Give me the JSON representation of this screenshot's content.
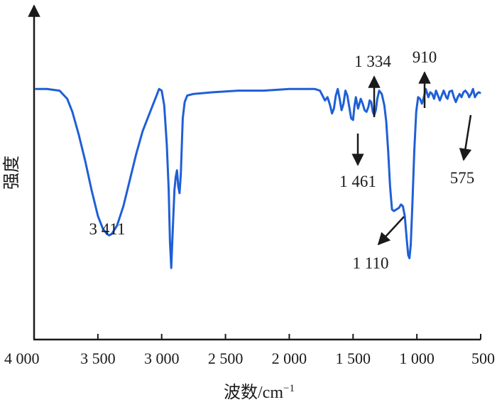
{
  "chart_data": {
    "type": "line",
    "title": "",
    "xlabel": "波数/cm",
    "xlabel_sup": "−1",
    "ylabel": "强度",
    "xlim": [
      4000,
      500
    ],
    "x_reversed": true,
    "ylim": [
      0,
      1
    ],
    "y_ticks_shown": false,
    "grid": false,
    "legend": "none",
    "line_color": "#1f5fd6",
    "arrow_color": "#1a1a1a",
    "x_ticks": [
      {
        "value": 4000,
        "label": "4 000"
      },
      {
        "value": 3500,
        "label": "3 500"
      },
      {
        "value": 3000,
        "label": "3 000"
      },
      {
        "value": 2500,
        "label": "2 500"
      },
      {
        "value": 2000,
        "label": "2 000"
      },
      {
        "value": 1500,
        "label": "1 500"
      },
      {
        "value": 1000,
        "label": "1 000"
      },
      {
        "value": 500,
        "label": "500"
      }
    ],
    "series": [
      {
        "points": [
          [
            3985,
            0.77
          ],
          [
            3900,
            0.77
          ],
          [
            3800,
            0.765
          ],
          [
            3740,
            0.74
          ],
          [
            3700,
            0.7
          ],
          [
            3650,
            0.63
          ],
          [
            3600,
            0.55
          ],
          [
            3550,
            0.46
          ],
          [
            3500,
            0.38
          ],
          [
            3460,
            0.34
          ],
          [
            3430,
            0.325
          ],
          [
            3411,
            0.32
          ],
          [
            3390,
            0.325
          ],
          [
            3350,
            0.35
          ],
          [
            3300,
            0.41
          ],
          [
            3250,
            0.49
          ],
          [
            3200,
            0.57
          ],
          [
            3150,
            0.64
          ],
          [
            3100,
            0.69
          ],
          [
            3070,
            0.72
          ],
          [
            3040,
            0.75
          ],
          [
            3020,
            0.77
          ],
          [
            3000,
            0.765
          ],
          [
            2980,
            0.72
          ],
          [
            2960,
            0.6
          ],
          [
            2945,
            0.46
          ],
          [
            2935,
            0.3
          ],
          [
            2925,
            0.22
          ],
          [
            2915,
            0.32
          ],
          [
            2900,
            0.46
          ],
          [
            2890,
            0.5
          ],
          [
            2880,
            0.52
          ],
          [
            2870,
            0.47
          ],
          [
            2860,
            0.45
          ],
          [
            2850,
            0.51
          ],
          [
            2835,
            0.68
          ],
          [
            2820,
            0.73
          ],
          [
            2800,
            0.75
          ],
          [
            2750,
            0.755
          ],
          [
            2600,
            0.76
          ],
          [
            2400,
            0.765
          ],
          [
            2200,
            0.765
          ],
          [
            2000,
            0.77
          ],
          [
            1800,
            0.77
          ],
          [
            1760,
            0.765
          ],
          [
            1740,
            0.75
          ],
          [
            1720,
            0.735
          ],
          [
            1700,
            0.745
          ],
          [
            1680,
            0.72
          ],
          [
            1665,
            0.695
          ],
          [
            1650,
            0.71
          ],
          [
            1635,
            0.75
          ],
          [
            1620,
            0.77
          ],
          [
            1605,
            0.74
          ],
          [
            1590,
            0.705
          ],
          [
            1575,
            0.725
          ],
          [
            1560,
            0.765
          ],
          [
            1545,
            0.75
          ],
          [
            1530,
            0.715
          ],
          [
            1515,
            0.68
          ],
          [
            1500,
            0.675
          ],
          [
            1490,
            0.715
          ],
          [
            1478,
            0.745
          ],
          [
            1461,
            0.71
          ],
          [
            1450,
            0.725
          ],
          [
            1440,
            0.74
          ],
          [
            1425,
            0.725
          ],
          [
            1410,
            0.705
          ],
          [
            1395,
            0.7
          ],
          [
            1380,
            0.715
          ],
          [
            1370,
            0.735
          ],
          [
            1358,
            0.73
          ],
          [
            1345,
            0.7
          ],
          [
            1334,
            0.69
          ],
          [
            1322,
            0.705
          ],
          [
            1310,
            0.74
          ],
          [
            1295,
            0.765
          ],
          [
            1275,
            0.755
          ],
          [
            1255,
            0.72
          ],
          [
            1240,
            0.67
          ],
          [
            1225,
            0.58
          ],
          [
            1210,
            0.47
          ],
          [
            1195,
            0.4
          ],
          [
            1180,
            0.395
          ],
          [
            1160,
            0.4
          ],
          [
            1140,
            0.405
          ],
          [
            1125,
            0.415
          ],
          [
            1110,
            0.41
          ],
          [
            1095,
            0.38
          ],
          [
            1080,
            0.31
          ],
          [
            1068,
            0.26
          ],
          [
            1058,
            0.25
          ],
          [
            1048,
            0.29
          ],
          [
            1035,
            0.42
          ],
          [
            1020,
            0.58
          ],
          [
            1005,
            0.7
          ],
          [
            990,
            0.745
          ],
          [
            975,
            0.74
          ],
          [
            960,
            0.725
          ],
          [
            945,
            0.745
          ],
          [
            930,
            0.77
          ],
          [
            910,
            0.745
          ],
          [
            895,
            0.76
          ],
          [
            880,
            0.755
          ],
          [
            865,
            0.74
          ],
          [
            850,
            0.765
          ],
          [
            835,
            0.75
          ],
          [
            820,
            0.735
          ],
          [
            805,
            0.75
          ],
          [
            790,
            0.765
          ],
          [
            770,
            0.745
          ],
          [
            760,
            0.74
          ],
          [
            745,
            0.762
          ],
          [
            725,
            0.765
          ],
          [
            710,
            0.745
          ],
          [
            695,
            0.73
          ],
          [
            680,
            0.745
          ],
          [
            665,
            0.755
          ],
          [
            650,
            0.745
          ],
          [
            635,
            0.76
          ],
          [
            620,
            0.765
          ],
          [
            600,
            0.755
          ],
          [
            590,
            0.745
          ],
          [
            575,
            0.755
          ],
          [
            560,
            0.77
          ],
          [
            545,
            0.745
          ],
          [
            530,
            0.755
          ],
          [
            515,
            0.76
          ],
          [
            505,
            0.758
          ]
        ]
      }
    ],
    "annotations": [
      {
        "label": "3 411",
        "x": 3411
      },
      {
        "label": "1 461",
        "x": 1461
      },
      {
        "label": "1 334",
        "x": 1334
      },
      {
        "label": "910",
        "x": 910
      },
      {
        "label": "1 110",
        "x": 1110
      },
      {
        "label": "575",
        "x": 575
      }
    ]
  }
}
